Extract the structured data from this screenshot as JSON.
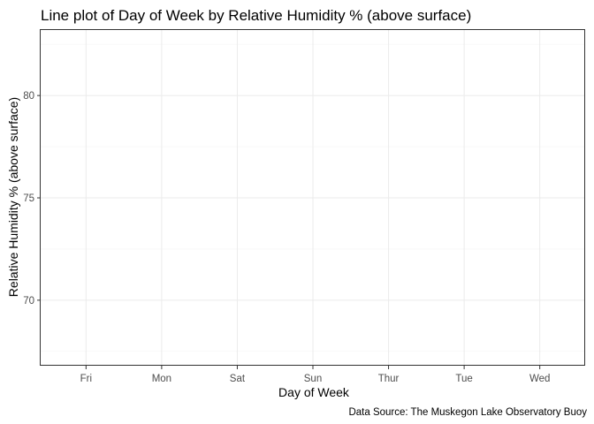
{
  "chart_data": {
    "type": "line",
    "title": "Line plot of Day of Week by Relative Humidity % (above surface)",
    "xlabel": "Day of Week",
    "ylabel": "Relative Humidity % (above surface)",
    "caption": "Data Source: The Muskegon Lake Observatory Buoy",
    "categories": [
      "Fri",
      "Mon",
      "Sat",
      "Sun",
      "Thur",
      "Tue",
      "Wed"
    ],
    "ylim": [
      66.8,
      83.2
    ],
    "yticks": [
      70,
      75,
      80
    ],
    "grid": true,
    "series": []
  }
}
